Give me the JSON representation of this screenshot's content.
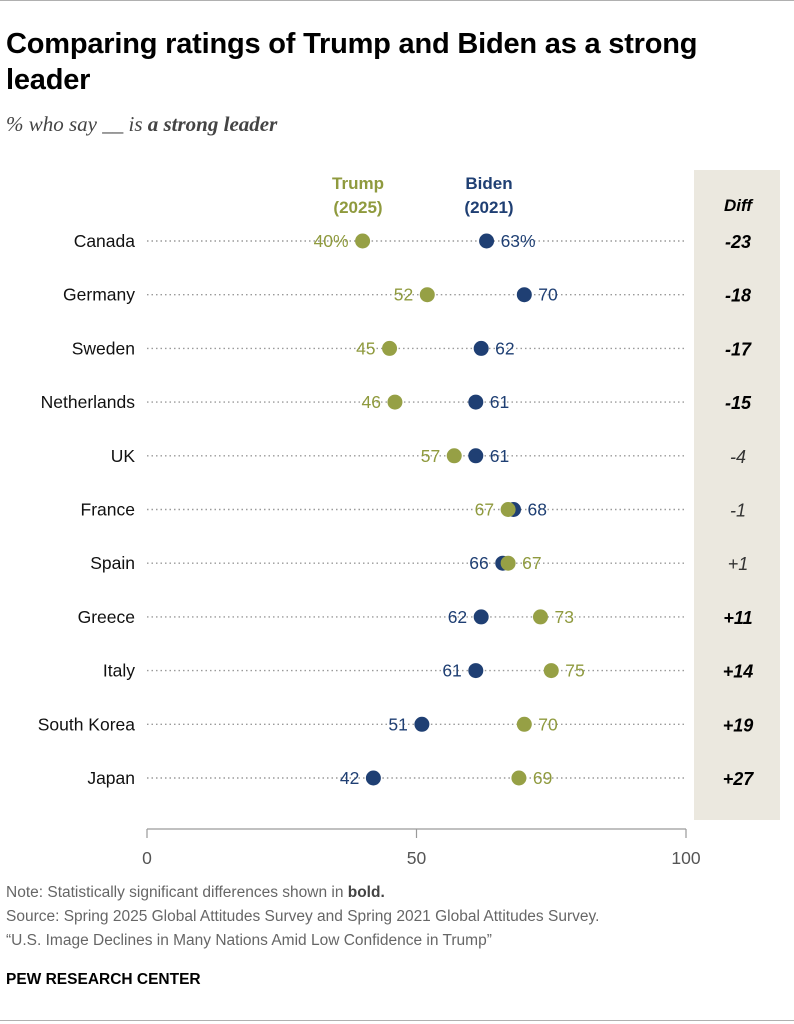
{
  "title": "Comparing ratings of Trump and Biden as a strong leader",
  "subtitle": {
    "prefix": "% who say __ is ",
    "emphasis": "a strong leader"
  },
  "colors": {
    "trump": "#8f9a3e",
    "trump_dot": "#96a045",
    "biden": "#1f3f73",
    "diff_bg": "#ebe8df",
    "axis": "#9a9a9a",
    "dots_line": "#9a9a9a"
  },
  "chart_data": {
    "type": "dot",
    "title": "Comparing ratings of Trump and Biden as a strong leader",
    "categories": [
      "Canada",
      "Germany",
      "Sweden",
      "Netherlands",
      "UK",
      "France",
      "Spain",
      "Greece",
      "Italy",
      "South Korea",
      "Japan"
    ],
    "series": [
      {
        "name": "Trump",
        "sublabel": "(2025)",
        "values": [
          40,
          52,
          45,
          46,
          57,
          67,
          67,
          73,
          75,
          70,
          69
        ],
        "labels": [
          "40%",
          "52",
          "45",
          "46",
          "57",
          "67",
          "67",
          "73",
          "75",
          "70",
          "69"
        ]
      },
      {
        "name": "Biden",
        "sublabel": "(2021)",
        "values": [
          63,
          70,
          62,
          61,
          61,
          68,
          66,
          62,
          61,
          51,
          42
        ],
        "labels": [
          "63%",
          "70",
          "62",
          "61",
          "61",
          "68",
          "66",
          "62",
          "61",
          "51",
          "42"
        ]
      }
    ],
    "diff": {
      "header": "Diff",
      "values": [
        "-23",
        "-18",
        "-17",
        "-15",
        "-4",
        "-1",
        "+1",
        "+11",
        "+14",
        "+19",
        "+27"
      ],
      "significant": [
        true,
        true,
        true,
        true,
        false,
        false,
        false,
        true,
        true,
        true,
        true
      ]
    },
    "xlim": [
      0,
      100
    ],
    "xticks": [
      "0",
      "50",
      "100"
    ]
  },
  "note": {
    "prefix": "Note: Statistically significant differences shown in ",
    "bold": "bold.",
    "source": "Source: Spring 2025 Global Attitudes Survey and Spring 2021 Global Attitudes Survey.",
    "report": "“U.S. Image Declines in Many Nations Amid Low Confidence in Trump”"
  },
  "brand": "PEW RESEARCH CENTER"
}
